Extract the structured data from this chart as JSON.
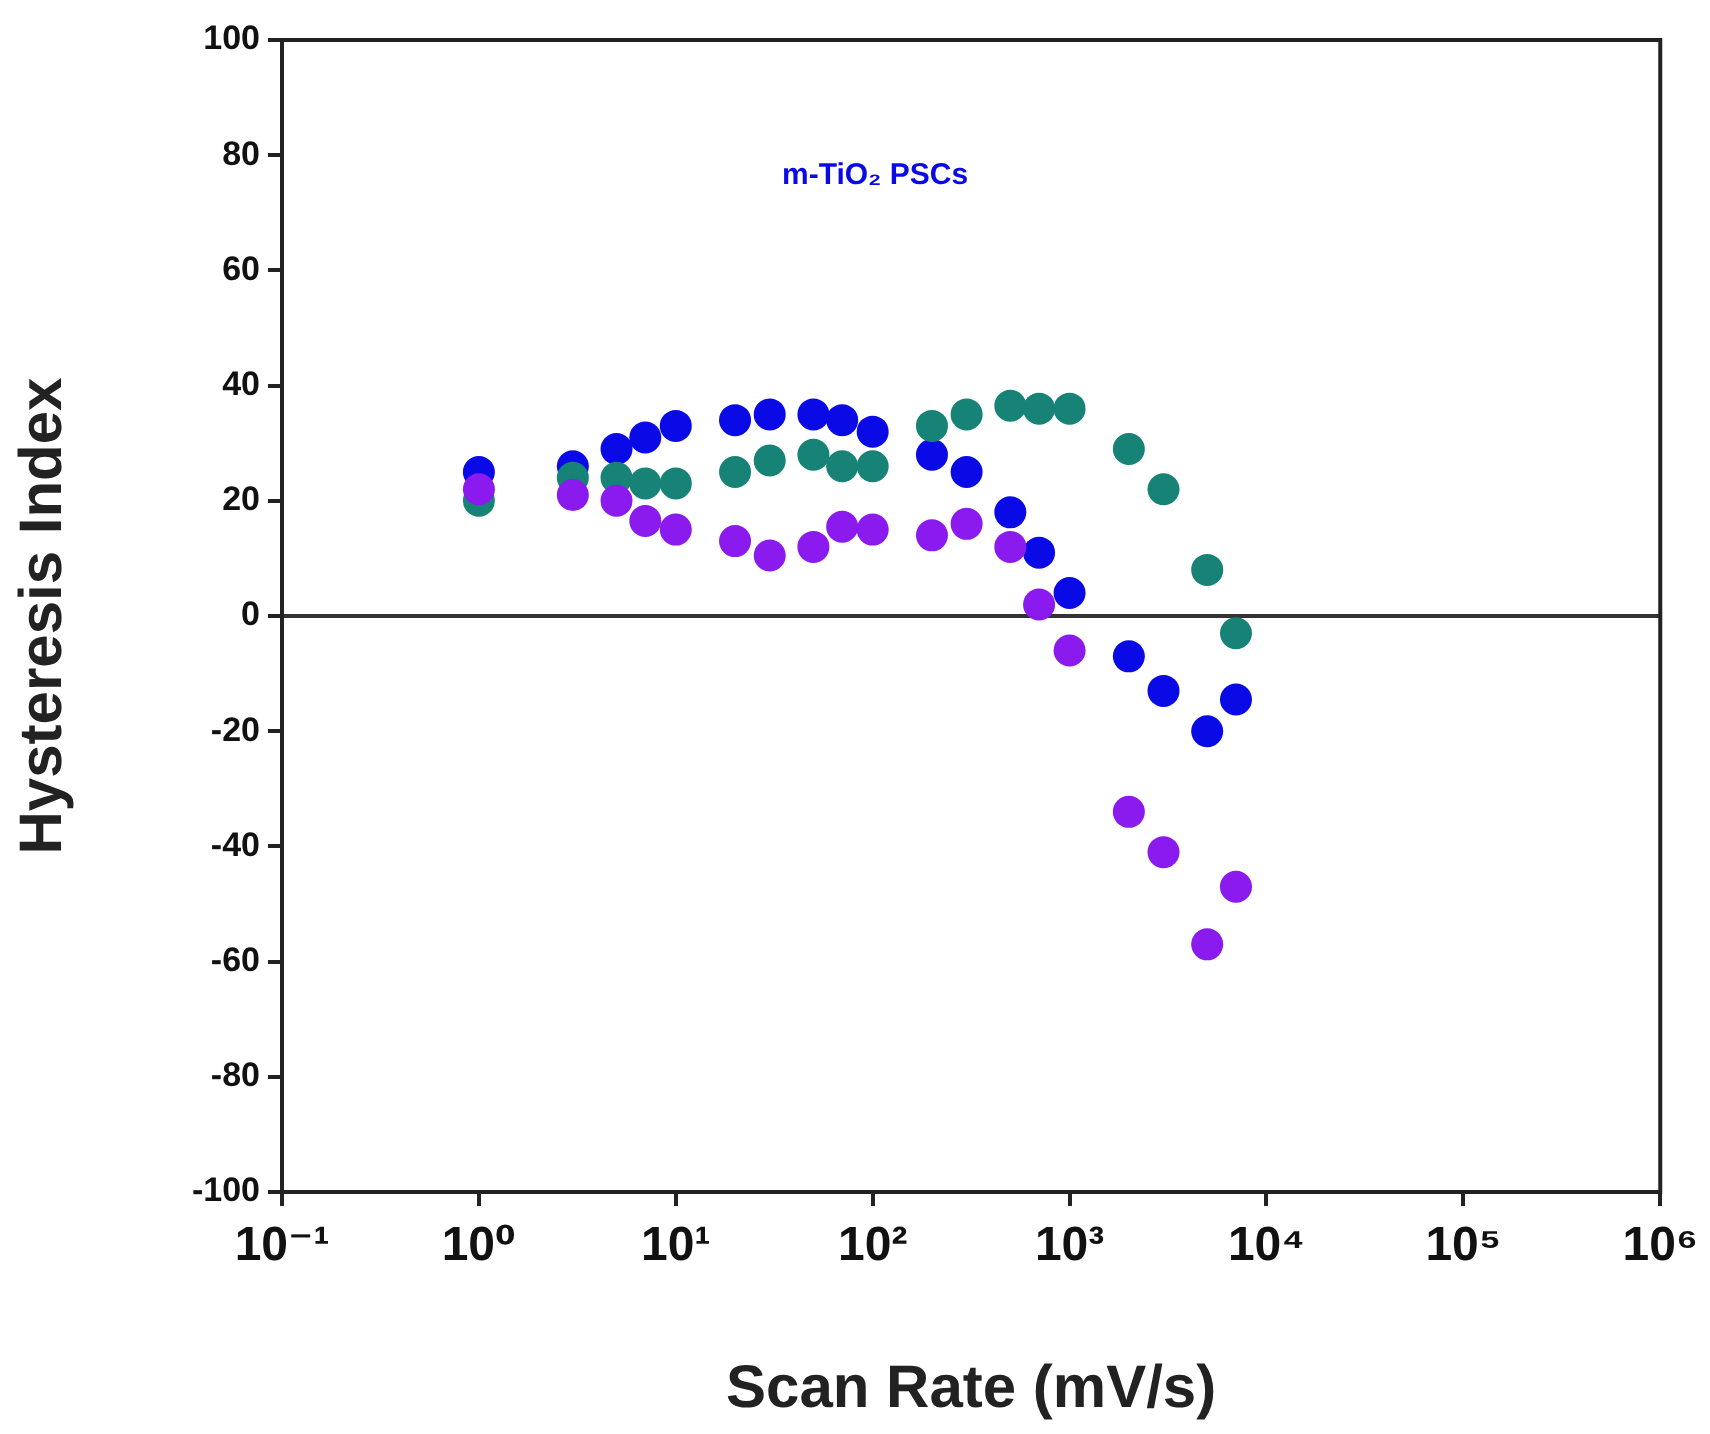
{
  "chart_data": {
    "type": "scatter",
    "xlabel": "Scan Rate (mV/s)",
    "ylabel": "Hysteresis Index",
    "annotations": [
      "m-TiO₂ PSCs"
    ],
    "x": [
      1,
      3,
      5,
      7,
      10,
      20,
      30,
      50,
      70,
      100,
      200,
      300,
      500,
      700,
      1000,
      2000,
      3000,
      5000,
      7000
    ],
    "series": [
      {
        "color": "#0a0ae6",
        "values": [
          25,
          26,
          29,
          31,
          33,
          34,
          35,
          35,
          34,
          32,
          28,
          25,
          18,
          11,
          4,
          -7,
          -13,
          -20,
          -14.5
        ]
      },
      {
        "color": "#178276",
        "values": [
          20,
          24,
          24,
          23,
          23,
          25,
          27,
          28,
          26,
          26,
          33,
          35,
          36.5,
          36,
          36,
          29,
          22,
          8,
          -3
        ]
      },
      {
        "color": "#8a1aee",
        "values": [
          22,
          21,
          20,
          16.5,
          15,
          13,
          10.5,
          12,
          15.5,
          15,
          14,
          16,
          12,
          2,
          -6,
          -34,
          -41,
          -57,
          -47
        ]
      }
    ],
    "log": "x",
    "xlim": [
      0.1,
      1000000
    ],
    "xticks": [
      {
        "value": 0.1,
        "label": "10⁻¹"
      },
      {
        "value": 1,
        "label": "10⁰"
      },
      {
        "value": 10,
        "label": "10¹"
      },
      {
        "value": 100,
        "label": "10²"
      },
      {
        "value": 1000,
        "label": "10³"
      },
      {
        "value": 10000,
        "label": "10⁴"
      },
      {
        "value": 100000,
        "label": "10⁵"
      },
      {
        "value": 1000000,
        "label": "10⁶"
      }
    ],
    "ylim": [
      -100,
      100
    ],
    "yticks": [
      -100,
      -80,
      -60,
      -40,
      -20,
      0,
      20,
      40,
      60,
      80,
      100
    ],
    "ref_lines": [
      {
        "axis": "y",
        "value": 0,
        "color": "#333333"
      }
    ],
    "marker": "circle",
    "grid": false,
    "legend": false
  }
}
